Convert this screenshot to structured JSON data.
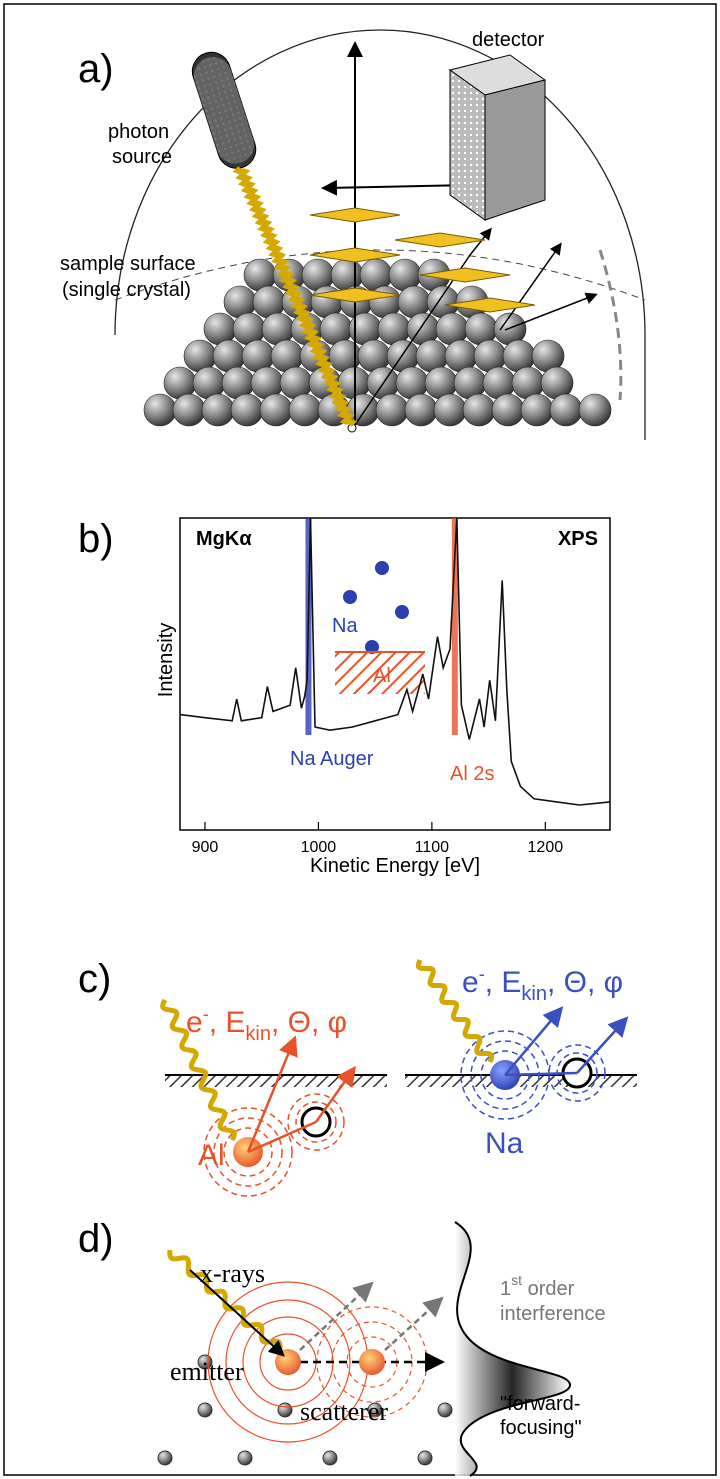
{
  "panel_a": {
    "label": "a)",
    "detector": "detector",
    "photon_source": [
      "photon",
      "source"
    ],
    "sample_surface": [
      "sample surface",
      "(single crystal)"
    ]
  },
  "chart_data": {
    "type": "line",
    "label": "b)",
    "excitation": "MgKα",
    "method": "XPS",
    "ylabel": "Intensity",
    "xlabel": "Kinetic Energy [eV]",
    "xlim": [
      878,
      1257
    ],
    "xticks": [
      900,
      1000,
      1100,
      1200
    ],
    "ylim": [
      0,
      100
    ],
    "color": "#111111",
    "x": [
      878,
      900,
      924,
      928,
      932,
      950,
      955,
      960,
      975,
      980,
      985,
      988,
      990,
      993,
      997,
      1010,
      1030,
      1050,
      1070,
      1078,
      1083,
      1092,
      1097,
      1105,
      1110,
      1116,
      1122,
      1126,
      1133,
      1142,
      1146,
      1151,
      1156,
      1162,
      1166,
      1170,
      1178,
      1190,
      1210,
      1230,
      1257
    ],
    "values": [
      37,
      36,
      35,
      42,
      35,
      36,
      46,
      38,
      40,
      52,
      39,
      43,
      48,
      100,
      33,
      32,
      33,
      35,
      37,
      45,
      38,
      50,
      42,
      62,
      52,
      58,
      100,
      40,
      29,
      42,
      33,
      48,
      35,
      80,
      45,
      22,
      14,
      10,
      9,
      8,
      9
    ],
    "annotations": {
      "na": "Na",
      "al": "Al",
      "na_auger": "Na Auger",
      "al_2s": "Al 2s"
    }
  },
  "panel_c": {
    "label": "c)",
    "formula": [
      "e",
      "-",
      ", E",
      "kin",
      ", Θ, φ"
    ],
    "al": "Al",
    "na": "Na"
  },
  "panel_d": {
    "label": "d)",
    "xrays": "x-rays",
    "emitter": "emitter",
    "scatterer": "scatterer",
    "order": [
      "1",
      "st",
      " order"
    ],
    "interference": "interference",
    "forward": [
      "\"forward-",
      "focusing\""
    ]
  }
}
